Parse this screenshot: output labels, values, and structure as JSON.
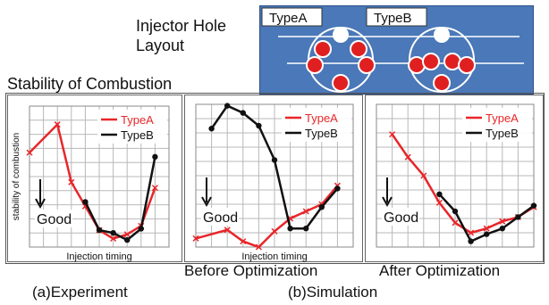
{
  "layout": {
    "title_line1": "Injector Hole",
    "title_line2": "Layout",
    "typeA_label": "TypeA",
    "typeB_label": "TypeB",
    "colors": {
      "panel_bg": "#4a78b8",
      "hole": "#e02020",
      "center": "#ffffff"
    }
  },
  "stability_title": "Stability of Combustion",
  "captions": {
    "before": "Before Optimization",
    "after": "After Optimization",
    "experiment": "(a)Experiment",
    "simulation": "(b)Simulation"
  },
  "good_label": "Good",
  "colors": {
    "typeA": "#e8262a",
    "typeB": "#111111",
    "grid": "#b8b8b8"
  },
  "chart_data": [
    {
      "type": "line",
      "title": "",
      "xlabel": "Injection timing",
      "ylabel": "stability of combustion",
      "xlim": [
        0,
        10
      ],
      "ylim": [
        0,
        10
      ],
      "grid": true,
      "legend": "top-right",
      "series": [
        {
          "name": "TypeA",
          "marker": "x",
          "x": [
            0,
            2,
            3,
            4,
            5,
            6,
            7,
            8,
            9
          ],
          "y": [
            6.7,
            8.7,
            4.6,
            2.9,
            1.2,
            0.6,
            0.9,
            1.5,
            4.2
          ]
        },
        {
          "name": "TypeB",
          "marker": "dot",
          "x": [
            4,
            5,
            6,
            7,
            8,
            9
          ],
          "y": [
            3.2,
            1.2,
            1.0,
            0.5,
            1.3,
            6.4
          ]
        }
      ]
    },
    {
      "type": "line",
      "title": "",
      "xlabel": "Injection timing",
      "ylabel": "",
      "xlim": [
        0,
        10
      ],
      "ylim": [
        0,
        10
      ],
      "grid": true,
      "legend": "top-right",
      "series": [
        {
          "name": "TypeA",
          "marker": "x",
          "x": [
            0,
            2,
            3,
            4,
            5,
            6,
            7,
            8,
            9
          ],
          "y": [
            0.6,
            1.2,
            0.4,
            0.0,
            1.1,
            2.0,
            2.5,
            3.0,
            4.3
          ]
        },
        {
          "name": "TypeB",
          "marker": "dot",
          "x": [
            1,
            2,
            3,
            4,
            5,
            6,
            7,
            8,
            9
          ],
          "y": [
            8.3,
            9.9,
            9.4,
            8.5,
            6.1,
            1.3,
            1.3,
            2.8,
            4.1
          ]
        }
      ]
    },
    {
      "type": "line",
      "title": "",
      "xlabel": "",
      "ylabel": "",
      "xlim": [
        0,
        10
      ],
      "ylim": [
        0,
        10
      ],
      "grid": true,
      "legend": "top-right",
      "series": [
        {
          "name": "TypeA",
          "marker": "x",
          "x": [
            1,
            2,
            3,
            4,
            5,
            6,
            7,
            8,
            9,
            10
          ],
          "y": [
            7.9,
            6.3,
            5.0,
            3.1,
            1.7,
            1.0,
            1.3,
            1.8,
            2.1,
            2.8
          ]
        },
        {
          "name": "TypeB",
          "marker": "dot",
          "x": [
            4,
            5,
            6,
            7,
            8,
            9,
            10
          ],
          "y": [
            3.7,
            2.5,
            0.4,
            0.9,
            1.3,
            2.1,
            2.9
          ]
        }
      ]
    }
  ]
}
